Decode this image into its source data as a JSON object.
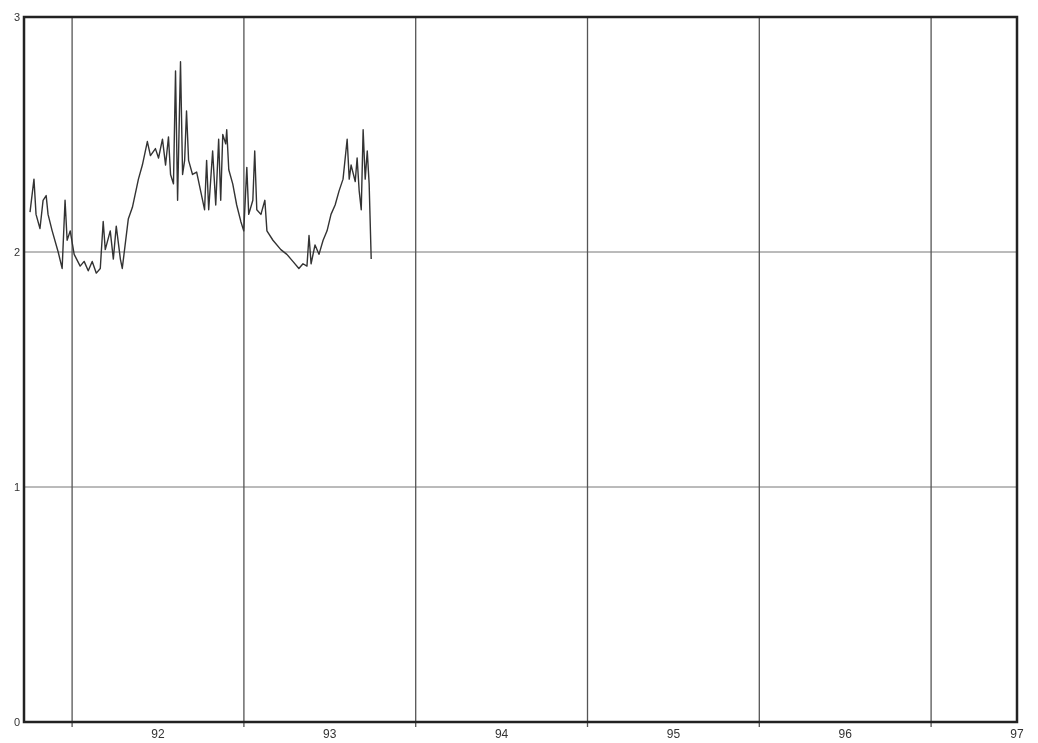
{
  "chart_data": {
    "type": "line",
    "xlim": [
      91.22,
      97
    ],
    "ylim": [
      0,
      3
    ],
    "xticks": [
      92,
      93,
      94,
      95,
      96,
      97
    ],
    "yticks": [
      0,
      1,
      2,
      3
    ],
    "grid": "y",
    "ref_lines": [
      {
        "axis": "x",
        "value": 91.5,
        "color": "#555555"
      },
      {
        "axis": "x",
        "value": 92.5,
        "color": "#555555"
      },
      {
        "axis": "x",
        "value": 93.5,
        "color": "#555555"
      },
      {
        "axis": "x",
        "value": 94.5,
        "color": "#555555"
      },
      {
        "axis": "x",
        "value": 95.5,
        "color": "#555555"
      },
      {
        "axis": "x",
        "value": 96.5,
        "color": "#555555"
      }
    ],
    "series": [
      {
        "color": "#333333",
        "x": [
          91.255,
          91.278,
          91.29,
          91.313,
          91.331,
          91.349,
          91.36,
          91.384,
          91.419,
          91.442,
          91.459,
          91.471,
          91.489,
          91.512,
          91.547,
          91.57,
          91.594,
          91.617,
          91.641,
          91.664,
          91.681,
          91.693,
          91.722,
          91.74,
          91.757,
          91.781,
          91.792,
          91.827,
          91.851,
          91.886,
          91.909,
          91.938,
          91.956,
          91.985,
          92.003,
          92.026,
          92.044,
          92.061,
          92.073,
          92.09,
          92.102,
          92.114,
          92.131,
          92.143,
          92.155,
          92.166,
          92.178,
          92.201,
          92.225,
          92.248,
          92.271,
          92.283,
          92.295,
          92.318,
          92.336,
          92.353,
          92.365,
          92.377,
          92.394,
          92.4,
          92.412,
          92.435,
          92.458,
          92.482,
          92.499,
          92.517,
          92.528,
          92.552,
          92.563,
          92.575,
          92.599,
          92.622,
          92.634,
          92.669,
          92.715,
          92.75,
          92.785,
          92.82,
          92.844,
          92.867,
          92.879,
          92.891,
          92.914,
          92.937,
          92.961,
          92.984,
          93.007,
          93.031,
          93.054,
          93.077,
          93.101,
          93.113,
          93.124,
          93.148,
          93.159,
          93.171,
          93.183,
          93.194,
          93.206,
          93.218,
          93.229,
          93.241
        ],
        "values": [
          2.17,
          2.31,
          2.16,
          2.1,
          2.22,
          2.24,
          2.16,
          2.09,
          2.0,
          1.93,
          2.22,
          2.05,
          2.09,
          1.99,
          1.94,
          1.96,
          1.92,
          1.96,
          1.91,
          1.93,
          2.13,
          2.01,
          2.09,
          1.97,
          2.11,
          1.97,
          1.93,
          2.14,
          2.19,
          2.31,
          2.37,
          2.47,
          2.41,
          2.44,
          2.4,
          2.48,
          2.37,
          2.49,
          2.33,
          2.29,
          2.77,
          2.22,
          2.81,
          2.33,
          2.39,
          2.6,
          2.39,
          2.33,
          2.34,
          2.26,
          2.18,
          2.39,
          2.18,
          2.43,
          2.2,
          2.48,
          2.22,
          2.5,
          2.46,
          2.52,
          2.35,
          2.29,
          2.2,
          2.13,
          2.09,
          2.36,
          2.16,
          2.22,
          2.43,
          2.18,
          2.16,
          2.22,
          2.09,
          2.05,
          2.01,
          1.99,
          1.96,
          1.93,
          1.95,
          1.94,
          2.07,
          1.95,
          2.03,
          1.99,
          2.05,
          2.09,
          2.16,
          2.2,
          2.26,
          2.31,
          2.48,
          2.31,
          2.37,
          2.3,
          2.4,
          2.26,
          2.18,
          2.52,
          2.31,
          2.43,
          2.29,
          1.97
        ]
      }
    ]
  }
}
